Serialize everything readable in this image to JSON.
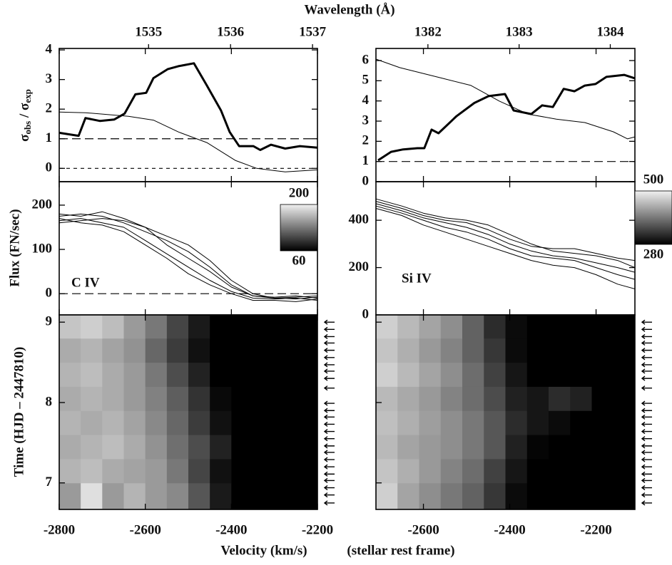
{
  "chart_data": [
    {
      "type": "line",
      "ylabel_parts": [
        "σ",
        "obs",
        " / σ",
        "exp"
      ],
      "x2label": "Wavelength (Å)",
      "x2lim": [
        1533.91,
        1537.06
      ],
      "x2ticks": [
        1535,
        1536,
        1537
      ],
      "xlim": [
        -2800,
        -2200
      ],
      "xticks": [
        -2800,
        -2600,
        -2400,
        -2200
      ],
      "ylim": [
        -0.45,
        4.05
      ],
      "yticks": [
        0,
        1,
        2,
        3,
        4
      ],
      "hlines": [
        1,
        0
      ],
      "series": [
        {
          "color": "#000000",
          "width": 3,
          "x": [
            -2800,
            -2755,
            -2739,
            -2705,
            -2672,
            -2648,
            -2623,
            -2598,
            -2581,
            -2548,
            -2523,
            -2487,
            -2457,
            -2424,
            -2404,
            -2382,
            -2349,
            -2333,
            -2308,
            -2275,
            -2241,
            -2200
          ],
          "values": [
            1.2,
            1.1,
            1.7,
            1.6,
            1.65,
            1.85,
            2.5,
            2.55,
            3.05,
            3.35,
            3.45,
            3.55,
            2.8,
            1.95,
            1.23,
            0.75,
            0.75,
            0.62,
            0.8,
            0.67,
            0.75,
            0.7
          ]
        },
        {
          "color": "#000000",
          "width": 1,
          "x": [
            -2800,
            -2739,
            -2639,
            -2581,
            -2523,
            -2457,
            -2391,
            -2341,
            -2275,
            -2200
          ],
          "values": [
            1.9,
            1.88,
            1.76,
            1.63,
            1.23,
            0.87,
            0.27,
            0,
            -0.12,
            -0.05
          ]
        }
      ]
    },
    {
      "type": "line",
      "ylabel": "Flux (FN/sec)",
      "annotation": "C IV",
      "xlim": [
        -2800,
        -2200
      ],
      "xticks": [
        -2800,
        -2600,
        -2400,
        -2200
      ],
      "ylim": [
        -48,
        253
      ],
      "yticks": [
        0,
        100,
        200
      ],
      "hlines": [
        0
      ],
      "series": [
        {
          "color": "#000000",
          "width": 1,
          "x": [
            -2800,
            -2750,
            -2700,
            -2650,
            -2600,
            -2550,
            -2500,
            -2450,
            -2400,
            -2350,
            -2300,
            -2250,
            -2200
          ],
          "values": [
            180,
            175,
            185,
            170,
            150,
            110,
            80,
            50,
            15,
            -5,
            -10,
            -8,
            -5
          ]
        },
        {
          "color": "#000000",
          "width": 1,
          "x": [
            -2800,
            -2750,
            -2700,
            -2650,
            -2600,
            -2550,
            -2500,
            -2450,
            -2400,
            -2350,
            -2300,
            -2250,
            -2200
          ],
          "values": [
            165,
            170,
            160,
            150,
            120,
            90,
            60,
            30,
            5,
            -10,
            -12,
            -10,
            -15
          ]
        },
        {
          "color": "#000000",
          "width": 1,
          "x": [
            -2800,
            -2750,
            -2700,
            -2650,
            -2600,
            -2550,
            -2500,
            -2450,
            -2400,
            -2350,
            -2300,
            -2250,
            -2200
          ],
          "values": [
            175,
            180,
            175,
            160,
            140,
            120,
            95,
            60,
            20,
            -5,
            -8,
            -5,
            -10
          ]
        },
        {
          "color": "#000000",
          "width": 1,
          "x": [
            -2800,
            -2750,
            -2700,
            -2650,
            -2600,
            -2550,
            -2500,
            -2450,
            -2400,
            -2350,
            -2300,
            -2250,
            -2200
          ],
          "values": [
            160,
            165,
            170,
            165,
            150,
            130,
            110,
            75,
            30,
            0,
            -10,
            -12,
            -8
          ]
        },
        {
          "color": "#000000",
          "width": 1,
          "x": [
            -2800,
            -2750,
            -2700,
            -2650,
            -2600,
            -2550,
            -2500,
            -2450,
            -2400,
            -2350,
            -2300,
            -2250,
            -2200
          ],
          "values": [
            170,
            160,
            155,
            140,
            110,
            80,
            45,
            20,
            0,
            -15,
            -15,
            -18,
            -12
          ]
        }
      ]
    },
    {
      "type": "heatmap",
      "ylabel": "Time  (HJD – 2447810)",
      "xlabel": "Velocity (km/s)",
      "xlim": [
        -2800,
        -2200
      ],
      "xticks": [
        -2800,
        -2600,
        -2400,
        -2200
      ],
      "ylim": [
        6.67,
        9.09
      ],
      "yticks": [
        7,
        8,
        9
      ],
      "clim": [
        60,
        200
      ],
      "cticks": [
        200,
        60
      ],
      "xbins": [
        -2800,
        -2750,
        -2700,
        -2650,
        -2600,
        -2550,
        -2500,
        -2450,
        -2400,
        -2350,
        -2300,
        -2250,
        -2200
      ],
      "ybins": [
        6.67,
        7.0,
        7.3,
        7.6,
        7.9,
        8.2,
        8.5,
        8.8,
        9.09
      ],
      "z": [
        [
          150,
          190,
          150,
          165,
          150,
          140,
          110,
          75,
          60,
          60,
          60,
          60
        ],
        [
          165,
          170,
          160,
          155,
          150,
          130,
          100,
          70,
          60,
          60,
          60,
          60
        ],
        [
          160,
          165,
          170,
          160,
          145,
          125,
          105,
          80,
          60,
          60,
          60,
          60
        ],
        [
          165,
          160,
          165,
          155,
          140,
          120,
          95,
          70,
          60,
          60,
          60,
          60
        ],
        [
          160,
          165,
          160,
          150,
          135,
          115,
          90,
          65,
          60,
          60,
          60,
          60
        ],
        [
          165,
          170,
          160,
          150,
          130,
          105,
          80,
          60,
          60,
          60,
          60,
          60
        ],
        [
          160,
          165,
          155,
          145,
          120,
          95,
          70,
          60,
          60,
          60,
          60,
          60
        ],
        [
          175,
          180,
          170,
          150,
          130,
          100,
          75,
          60,
          60,
          60,
          60,
          60
        ]
      ],
      "arrows": [
        9.0,
        8.91,
        8.82,
        8.74,
        8.65,
        8.56,
        8.47,
        8.39,
        8.3,
        8.18,
        7.99,
        7.9,
        7.82,
        7.73,
        7.64,
        7.55,
        7.46,
        7.38,
        7.29,
        7.2,
        7.11,
        7.03,
        6.94,
        6.85,
        6.75
      ]
    },
    {
      "type": "line",
      "x2lim": [
        1381.43,
        1384.27
      ],
      "x2ticks": [
        1382,
        1383,
        1384
      ],
      "xlim": [
        -2710,
        -2110
      ],
      "xticks": [
        -2600,
        -2400,
        -2200
      ],
      "ylim": [
        0,
        6.6
      ],
      "yticks": [
        0,
        1,
        2,
        3,
        4,
        5,
        6
      ],
      "hlines": [
        1
      ],
      "series": [
        {
          "color": "#000000",
          "width": 3,
          "x": [
            -2705,
            -2675,
            -2647,
            -2614,
            -2598,
            -2581,
            -2565,
            -2523,
            -2482,
            -2449,
            -2411,
            -2391,
            -2350,
            -2325,
            -2300,
            -2275,
            -2250,
            -2226,
            -2201,
            -2176,
            -2135,
            -2110
          ],
          "values": [
            1.06,
            1.48,
            1.6,
            1.66,
            1.66,
            2.58,
            2.4,
            3.25,
            3.9,
            4.24,
            4.34,
            3.53,
            3.35,
            3.78,
            3.7,
            4.6,
            4.48,
            4.76,
            4.84,
            5.19,
            5.29,
            5.12
          ]
        },
        {
          "color": "#000000",
          "width": 1,
          "x": [
            -2710,
            -2655,
            -2556,
            -2490,
            -2424,
            -2358,
            -2292,
            -2226,
            -2160,
            -2127,
            -2110
          ],
          "values": [
            6.07,
            5.65,
            5.12,
            4.77,
            3.99,
            3.35,
            3.1,
            2.93,
            2.47,
            2.12,
            2.22
          ]
        }
      ]
    },
    {
      "type": "line",
      "annotation": "Si IV",
      "xlim": [
        -2710,
        -2110
      ],
      "xticks": [
        -2600,
        -2400,
        -2200
      ],
      "ylim": [
        0,
        563
      ],
      "yticks": [
        0,
        200,
        400
      ],
      "series": [
        {
          "color": "#000000",
          "width": 1,
          "x": [
            -2710,
            -2650,
            -2600,
            -2550,
            -2500,
            -2450,
            -2400,
            -2350,
            -2300,
            -2250,
            -2200,
            -2150,
            -2110
          ],
          "values": [
            480,
            450,
            420,
            400,
            390,
            360,
            320,
            290,
            280,
            280,
            260,
            240,
            230
          ]
        },
        {
          "color": "#000000",
          "width": 1,
          "x": [
            -2710,
            -2650,
            -2600,
            -2550,
            -2500,
            -2450,
            -2400,
            -2350,
            -2300,
            -2250,
            -2200,
            -2150,
            -2110
          ],
          "values": [
            470,
            440,
            410,
            390,
            370,
            340,
            300,
            270,
            250,
            240,
            220,
            200,
            180
          ]
        },
        {
          "color": "#000000",
          "width": 1,
          "x": [
            -2710,
            -2650,
            -2600,
            -2550,
            -2500,
            -2450,
            -2400,
            -2350,
            -2300,
            -2250,
            -2200,
            -2150,
            -2110
          ],
          "values": [
            460,
            430,
            400,
            370,
            350,
            320,
            280,
            250,
            240,
            230,
            200,
            170,
            150
          ]
        },
        {
          "color": "#000000",
          "width": 1,
          "x": [
            -2710,
            -2650,
            -2600,
            -2550,
            -2500,
            -2450,
            -2400,
            -2350,
            -2300,
            -2250,
            -2200,
            -2150,
            -2110
          ],
          "values": [
            490,
            460,
            430,
            410,
            400,
            380,
            340,
            300,
            270,
            260,
            250,
            230,
            200
          ]
        },
        {
          "color": "#000000",
          "width": 1,
          "x": [
            -2710,
            -2650,
            -2600,
            -2550,
            -2500,
            -2450,
            -2400,
            -2350,
            -2300,
            -2250,
            -2200,
            -2150,
            -2110
          ],
          "values": [
            450,
            420,
            380,
            350,
            320,
            290,
            260,
            230,
            210,
            200,
            170,
            130,
            110
          ]
        }
      ]
    },
    {
      "type": "heatmap",
      "xlabel": "(stellar rest frame)",
      "xlim": [
        -2710,
        -2110
      ],
      "xticks": [
        -2600,
        -2400,
        -2200
      ],
      "ylim": [
        6.67,
        9.09
      ],
      "yticks": [
        7,
        8,
        9
      ],
      "clim": [
        280,
        500
      ],
      "cticks": [
        500,
        280
      ],
      "xbins": [
        -2710,
        -2660,
        -2610,
        -2560,
        -2510,
        -2460,
        -2410,
        -2360,
        -2310,
        -2260,
        -2210,
        -2160,
        -2110
      ],
      "ybins": [
        6.67,
        7.0,
        7.3,
        7.6,
        7.9,
        8.2,
        8.5,
        8.8,
        9.09
      ],
      "z": [
        [
          470,
          430,
          410,
          390,
          370,
          330,
          290,
          280,
          280,
          280,
          280,
          280
        ],
        [
          460,
          440,
          420,
          400,
          380,
          340,
          300,
          280,
          280,
          280,
          280,
          280
        ],
        [
          450,
          430,
          420,
          410,
          390,
          360,
          310,
          285,
          280,
          280,
          280,
          280
        ],
        [
          455,
          440,
          425,
          410,
          390,
          360,
          320,
          300,
          290,
          280,
          280,
          280
        ],
        [
          450,
          435,
          420,
          400,
          380,
          350,
          310,
          300,
          320,
          310,
          280,
          280
        ],
        [
          470,
          450,
          430,
          410,
          380,
          340,
          300,
          280,
          280,
          280,
          280,
          280
        ],
        [
          460,
          440,
          420,
          400,
          370,
          330,
          290,
          280,
          280,
          280,
          280,
          280
        ],
        [
          470,
          450,
          430,
          410,
          370,
          320,
          290,
          280,
          280,
          280,
          280,
          280
        ]
      ],
      "arrows": [
        9.0,
        8.91,
        8.82,
        8.74,
        8.65,
        8.56,
        8.47,
        8.39,
        8.3,
        8.18,
        7.99,
        7.9,
        7.82,
        7.73,
        7.64,
        7.55,
        7.46,
        7.38,
        7.29,
        7.2,
        7.11,
        7.03,
        6.94,
        6.85,
        6.75
      ]
    }
  ]
}
